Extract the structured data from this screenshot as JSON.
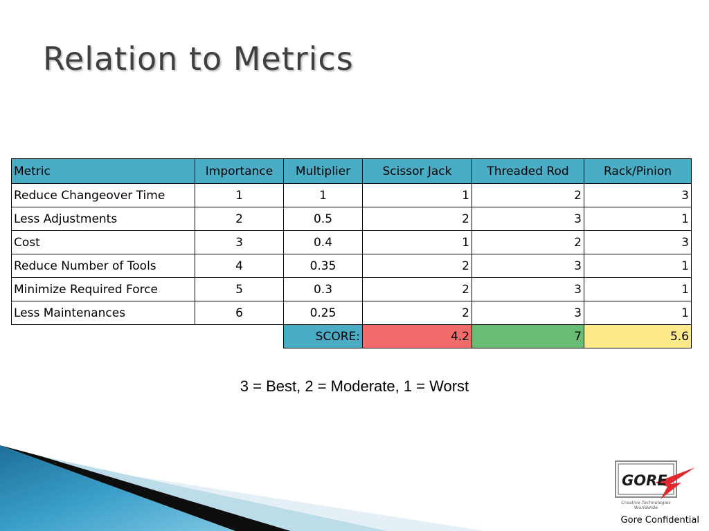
{
  "title": "Relation to Metrics",
  "table": {
    "headers": [
      "Metric",
      "Importance",
      "Multiplier",
      "Scissor Jack",
      "Threaded Rod",
      "Rack/Pinion"
    ],
    "rows": [
      [
        "Reduce Changeover Time",
        "1",
        "1",
        "1",
        "2",
        "3"
      ],
      [
        "Less Adjustments",
        "2",
        "0.5",
        "2",
        "3",
        "1"
      ],
      [
        "Cost",
        "3",
        "0.4",
        "1",
        "2",
        "3"
      ],
      [
        "Reduce Number of Tools",
        "4",
        "0.35",
        "2",
        "3",
        "1"
      ],
      [
        "Minimize Required Force",
        "5",
        "0.3",
        "2",
        "3",
        "1"
      ],
      [
        "Less Maintenances",
        "6",
        "0.25",
        "2",
        "3",
        "1"
      ]
    ],
    "score": {
      "label": "SCORE:",
      "values": [
        "4.2",
        "7",
        "5.6"
      ],
      "colors": [
        "#f26b6b",
        "#66bd73",
        "#fee98a"
      ]
    },
    "header_color": "#4bacc6"
  },
  "legend": "3 = Best,  2 = Moderate,  1 = Worst",
  "logo": {
    "text": "GORE",
    "tagline_1": "Creative Technologies",
    "tagline_2": "Worldwide"
  },
  "footer": "Gore Confidential"
}
